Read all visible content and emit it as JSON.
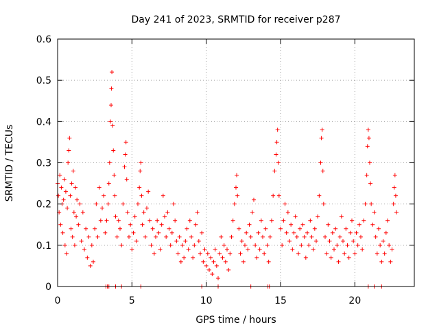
{
  "chart_data": {
    "type": "scatter",
    "title": "Day 241 of 2023, SRMTID for receiver p287",
    "xlabel": "GPS time / hours",
    "ylabel": "SRMTID / TECUs",
    "xlim": [
      0,
      24
    ],
    "ylim": [
      0,
      0.6
    ],
    "x_ticks": [
      0,
      5,
      10,
      15,
      20
    ],
    "x_tick_labels": [
      "0",
      "5",
      "10",
      "15",
      "20"
    ],
    "y_ticks": [
      0,
      0.1,
      0.2,
      0.3,
      0.4,
      0.5,
      0.6
    ],
    "y_tick_labels": [
      "0",
      "0.1",
      "0.2",
      "0.3",
      "0.4",
      "0.5",
      "0.6"
    ],
    "grid": true,
    "marker": "+",
    "color": "#ff0000",
    "series": [
      {
        "name": "SRMTID",
        "points": [
          [
            0.0,
            0.25
          ],
          [
            0.05,
            0.22
          ],
          [
            0.1,
            0.18
          ],
          [
            0.15,
            0.27
          ],
          [
            0.2,
            0.15
          ],
          [
            0.25,
            0.24
          ],
          [
            0.3,
            0.2
          ],
          [
            0.35,
            0.13
          ],
          [
            0.4,
            0.21
          ],
          [
            0.45,
            0.26
          ],
          [
            0.5,
            0.1
          ],
          [
            0.55,
            0.23
          ],
          [
            0.6,
            0.08
          ],
          [
            0.65,
            0.19
          ],
          [
            0.7,
            0.3
          ],
          [
            0.75,
            0.33
          ],
          [
            0.8,
            0.36
          ],
          [
            0.85,
            0.22
          ],
          [
            0.9,
            0.14
          ],
          [
            0.95,
            0.25
          ],
          [
            1.0,
            0.12
          ],
          [
            1.05,
            0.28
          ],
          [
            1.1,
            0.18
          ],
          [
            1.15,
            0.1
          ],
          [
            1.2,
            0.24
          ],
          [
            1.25,
            0.17
          ],
          [
            1.3,
            0.21
          ],
          [
            1.4,
            0.15
          ],
          [
            1.5,
            0.2
          ],
          [
            1.6,
            0.11
          ],
          [
            1.7,
            0.18
          ],
          [
            1.8,
            0.09
          ],
          [
            1.9,
            0.14
          ],
          [
            2.0,
            0.07
          ],
          [
            2.1,
            0.12
          ],
          [
            2.2,
            0.05
          ],
          [
            2.3,
            0.1
          ],
          [
            2.4,
            0.06
          ],
          [
            2.5,
            0.14
          ],
          [
            2.6,
            0.2
          ],
          [
            2.7,
            0.12
          ],
          [
            2.8,
            0.24
          ],
          [
            2.9,
            0.16
          ],
          [
            3.0,
            0.19
          ],
          [
            3.1,
            0.22
          ],
          [
            3.2,
            0.13
          ],
          [
            3.3,
            0.16
          ],
          [
            3.4,
            0.2
          ],
          [
            3.45,
            0.25
          ],
          [
            3.5,
            0.3
          ],
          [
            3.55,
            0.4
          ],
          [
            3.6,
            0.44
          ],
          [
            3.62,
            0.48
          ],
          [
            3.65,
            0.52
          ],
          [
            3.7,
            0.39
          ],
          [
            3.75,
            0.33
          ],
          [
            3.8,
            0.27
          ],
          [
            3.85,
            0.22
          ],
          [
            3.9,
            0.17
          ],
          [
            4.0,
            0.12
          ],
          [
            4.1,
            0.16
          ],
          [
            4.2,
            0.14
          ],
          [
            4.3,
            0.1
          ],
          [
            4.4,
            0.2
          ],
          [
            4.5,
            0.29
          ],
          [
            4.55,
            0.32
          ],
          [
            4.6,
            0.35
          ],
          [
            4.65,
            0.26
          ],
          [
            4.7,
            0.18
          ],
          [
            4.8,
            0.12
          ],
          [
            4.9,
            0.15
          ],
          [
            5.0,
            0.09
          ],
          [
            5.1,
            0.13
          ],
          [
            5.2,
            0.17
          ],
          [
            5.3,
            0.11
          ],
          [
            5.4,
            0.2
          ],
          [
            5.5,
            0.24
          ],
          [
            5.55,
            0.28
          ],
          [
            5.6,
            0.3
          ],
          [
            5.65,
            0.22
          ],
          [
            5.7,
            0.15
          ],
          [
            5.8,
            0.18
          ],
          [
            5.9,
            0.12
          ],
          [
            6.0,
            0.19
          ],
          [
            6.1,
            0.23
          ],
          [
            6.2,
            0.16
          ],
          [
            6.3,
            0.1
          ],
          [
            6.4,
            0.14
          ],
          [
            6.5,
            0.08
          ],
          [
            6.6,
            0.12
          ],
          [
            6.7,
            0.16
          ],
          [
            6.8,
            0.13
          ],
          [
            6.9,
            0.09
          ],
          [
            7.0,
            0.15
          ],
          [
            7.1,
            0.22
          ],
          [
            7.2,
            0.17
          ],
          [
            7.3,
            0.12
          ],
          [
            7.4,
            0.18
          ],
          [
            7.5,
            0.14
          ],
          [
            7.6,
            0.1
          ],
          [
            7.7,
            0.13
          ],
          [
            7.8,
            0.2
          ],
          [
            7.9,
            0.16
          ],
          [
            8.0,
            0.11
          ],
          [
            8.1,
            0.08
          ],
          [
            8.2,
            0.12
          ],
          [
            8.3,
            0.06
          ],
          [
            8.4,
            0.1
          ],
          [
            8.5,
            0.07
          ],
          [
            8.6,
            0.11
          ],
          [
            8.7,
            0.14
          ],
          [
            8.8,
            0.09
          ],
          [
            8.9,
            0.16
          ],
          [
            9.0,
            0.12
          ],
          [
            9.1,
            0.07
          ],
          [
            9.2,
            0.1
          ],
          [
            9.3,
            0.15
          ],
          [
            9.4,
            0.18
          ],
          [
            9.5,
            0.11
          ],
          [
            9.6,
            0.08
          ],
          [
            9.7,
            0.13
          ],
          [
            9.8,
            0.06
          ],
          [
            9.9,
            0.09
          ],
          [
            10.0,
            0.05
          ],
          [
            10.1,
            0.08
          ],
          [
            10.2,
            0.04
          ],
          [
            10.3,
            0.07
          ],
          [
            10.4,
            0.03
          ],
          [
            10.5,
            0.06
          ],
          [
            10.6,
            0.09
          ],
          [
            10.7,
            0.05
          ],
          [
            10.8,
            0.02
          ],
          [
            10.9,
            0.08
          ],
          [
            11.0,
            0.12
          ],
          [
            11.1,
            0.07
          ],
          [
            11.2,
            0.1
          ],
          [
            11.3,
            0.06
          ],
          [
            11.4,
            0.09
          ],
          [
            11.5,
            0.04
          ],
          [
            11.6,
            0.08
          ],
          [
            11.7,
            0.12
          ],
          [
            11.8,
            0.16
          ],
          [
            11.9,
            0.2
          ],
          [
            12.0,
            0.24
          ],
          [
            12.05,
            0.27
          ],
          [
            12.1,
            0.22
          ],
          [
            12.2,
            0.14
          ],
          [
            12.3,
            0.08
          ],
          [
            12.4,
            0.11
          ],
          [
            12.5,
            0.06
          ],
          [
            12.6,
            0.1
          ],
          [
            12.7,
            0.13
          ],
          [
            12.8,
            0.09
          ],
          [
            12.9,
            0.15
          ],
          [
            13.0,
            0.12
          ],
          [
            13.1,
            0.18
          ],
          [
            13.2,
            0.21
          ],
          [
            13.3,
            0.1
          ],
          [
            13.4,
            0.07
          ],
          [
            13.5,
            0.13
          ],
          [
            13.6,
            0.09
          ],
          [
            13.7,
            0.16
          ],
          [
            13.8,
            0.12
          ],
          [
            13.9,
            0.08
          ],
          [
            14.0,
            0.14
          ],
          [
            14.1,
            0.1
          ],
          [
            14.2,
            0.06
          ],
          [
            14.3,
            0.12
          ],
          [
            14.4,
            0.16
          ],
          [
            14.5,
            0.22
          ],
          [
            14.6,
            0.28
          ],
          [
            14.7,
            0.32
          ],
          [
            14.75,
            0.35
          ],
          [
            14.8,
            0.38
          ],
          [
            14.85,
            0.3
          ],
          [
            14.9,
            0.22
          ],
          [
            15.0,
            0.14
          ],
          [
            15.1,
            0.1
          ],
          [
            15.2,
            0.16
          ],
          [
            15.3,
            0.2
          ],
          [
            15.4,
            0.13
          ],
          [
            15.5,
            0.18
          ],
          [
            15.6,
            0.11
          ],
          [
            15.7,
            0.15
          ],
          [
            15.8,
            0.09
          ],
          [
            15.9,
            0.13
          ],
          [
            16.0,
            0.17
          ],
          [
            16.1,
            0.12
          ],
          [
            16.2,
            0.08
          ],
          [
            16.3,
            0.14
          ],
          [
            16.4,
            0.1
          ],
          [
            16.5,
            0.15
          ],
          [
            16.6,
            0.12
          ],
          [
            16.7,
            0.07
          ],
          [
            16.8,
            0.13
          ],
          [
            16.9,
            0.1
          ],
          [
            17.0,
            0.16
          ],
          [
            17.1,
            0.12
          ],
          [
            17.2,
            0.09
          ],
          [
            17.3,
            0.14
          ],
          [
            17.4,
            0.11
          ],
          [
            17.5,
            0.17
          ],
          [
            17.6,
            0.22
          ],
          [
            17.7,
            0.3
          ],
          [
            17.75,
            0.36
          ],
          [
            17.8,
            0.38
          ],
          [
            17.85,
            0.28
          ],
          [
            17.9,
            0.2
          ],
          [
            18.0,
            0.12
          ],
          [
            18.1,
            0.08
          ],
          [
            18.2,
            0.15
          ],
          [
            18.3,
            0.11
          ],
          [
            18.4,
            0.07
          ],
          [
            18.5,
            0.13
          ],
          [
            18.6,
            0.09
          ],
          [
            18.7,
            0.14
          ],
          [
            18.8,
            0.1
          ],
          [
            18.9,
            0.06
          ],
          [
            19.0,
            0.12
          ],
          [
            19.1,
            0.17
          ],
          [
            19.2,
            0.11
          ],
          [
            19.3,
            0.08
          ],
          [
            19.4,
            0.14
          ],
          [
            19.5,
            0.1
          ],
          [
            19.6,
            0.07
          ],
          [
            19.7,
            0.13
          ],
          [
            19.8,
            0.16
          ],
          [
            19.9,
            0.11
          ],
          [
            20.0,
            0.08
          ],
          [
            20.1,
            0.13
          ],
          [
            20.2,
            0.1
          ],
          [
            20.3,
            0.15
          ],
          [
            20.4,
            0.12
          ],
          [
            20.5,
            0.09
          ],
          [
            20.6,
            0.16
          ],
          [
            20.7,
            0.2
          ],
          [
            20.8,
            0.27
          ],
          [
            20.85,
            0.34
          ],
          [
            20.9,
            0.38
          ],
          [
            20.95,
            0.36
          ],
          [
            21.0,
            0.3
          ],
          [
            21.05,
            0.25
          ],
          [
            21.1,
            0.2
          ],
          [
            21.2,
            0.15
          ],
          [
            21.3,
            0.18
          ],
          [
            21.4,
            0.12
          ],
          [
            21.5,
            0.08
          ],
          [
            21.6,
            0.14
          ],
          [
            21.7,
            0.1
          ],
          [
            21.8,
            0.06
          ],
          [
            21.9,
            0.11
          ],
          [
            22.0,
            0.08
          ],
          [
            22.1,
            0.13
          ],
          [
            22.2,
            0.16
          ],
          [
            22.3,
            0.1
          ],
          [
            22.4,
            0.06
          ],
          [
            22.5,
            0.09
          ],
          [
            22.6,
            0.2
          ],
          [
            22.65,
            0.24
          ],
          [
            22.7,
            0.27
          ],
          [
            22.75,
            0.22
          ],
          [
            22.8,
            0.18
          ],
          [
            3.25,
            0
          ],
          [
            3.35,
            0
          ],
          [
            3.45,
            0
          ],
          [
            3.9,
            0
          ],
          [
            4.3,
            0
          ],
          [
            5.6,
            0
          ],
          [
            9.7,
            0
          ],
          [
            10.8,
            0
          ],
          [
            13.0,
            0
          ],
          [
            14.15,
            0
          ],
          [
            14.25,
            0
          ],
          [
            20.9,
            0
          ],
          [
            21.3,
            0
          ],
          [
            21.8,
            0
          ]
        ]
      }
    ]
  }
}
